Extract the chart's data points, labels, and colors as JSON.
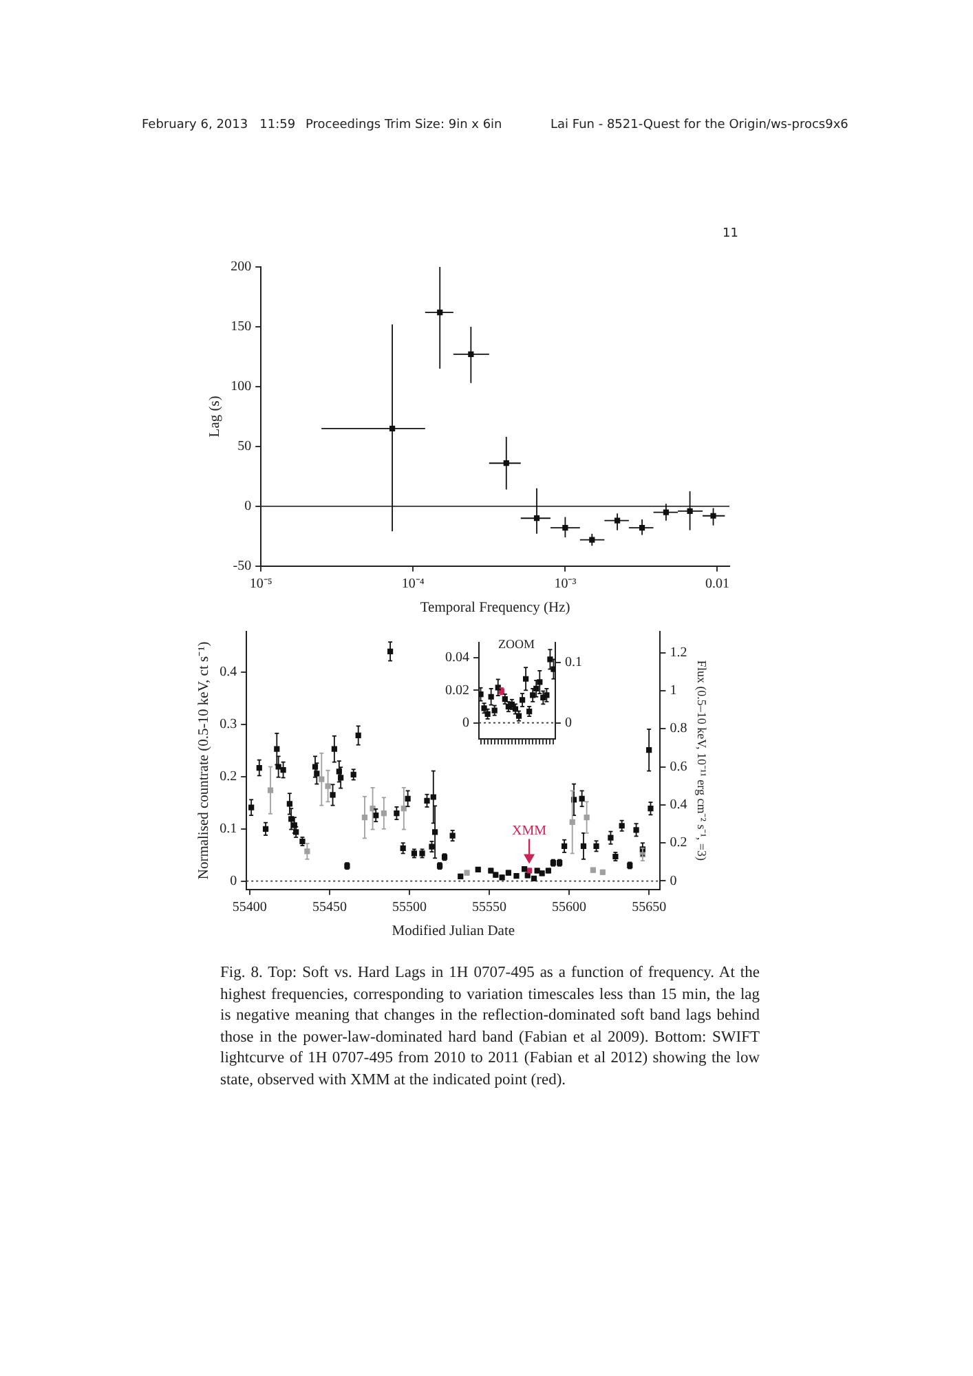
{
  "chart_data": [
    {
      "type": "scatter",
      "xlabel": "Temporal Frequency (Hz)",
      "ylabel": "Lag (s)",
      "log": "x",
      "grid": false,
      "legend": false,
      "marker": "square",
      "xlim": [
        1e-05,
        0.012
      ],
      "xticks": [
        {
          "value": 1e-05,
          "label": "10⁻⁵"
        },
        {
          "value": 0.0001,
          "label": "10⁻⁴"
        },
        {
          "value": 0.001,
          "label": "10⁻³"
        },
        0.01
      ],
      "ylim": [
        -50,
        200
      ],
      "yticks": [
        -50,
        0,
        50,
        100,
        150,
        200
      ],
      "ref_lines": [
        {
          "axis": "y",
          "value": 0,
          "line_style": "solid"
        }
      ],
      "annotations": [
        "February 6, 2013   11:59",
        "Proceedings Trim Size: 9in x 6in",
        "Lai Fun - 8521-Quest for the Origin/ws-procs9x6",
        "11"
      ],
      "series": [
        {
          "color": "#111111",
          "x": [
            7.3e-05,
            0.00015,
            0.00024,
            0.00041,
            0.00065,
            0.001,
            0.0015,
            0.0022,
            0.0032,
            0.0046,
            0.0066,
            0.0094
          ],
          "values": [
            65,
            162,
            127,
            36,
            -10,
            -18,
            -28,
            -12,
            -18,
            -5,
            -4,
            -8
          ],
          "errors": [
            [
              -21,
              152
            ],
            [
              115,
              200
            ],
            [
              103,
              150
            ],
            [
              14,
              58
            ],
            [
              -23,
              15
            ],
            [
              -26,
              -9
            ],
            [
              -33,
              -23
            ],
            [
              -20,
              -6
            ],
            [
              -24,
              -11
            ],
            [
              -12,
              2
            ],
            [
              -20,
              12.5
            ],
            [
              -16,
              -1.5
            ]
          ],
          "xerrors": [
            [
              2.5e-05,
              0.00012
            ],
            [
              0.00012,
              0.000184
            ],
            [
              0.000184,
              0.000316
            ],
            [
              0.000316,
              0.00051
            ],
            [
              0.00051,
              0.0008
            ],
            [
              0.0008,
              0.00125
            ],
            [
              0.00125,
              0.00181
            ],
            [
              0.00181,
              0.00262
            ],
            [
              0.00262,
              0.0038
            ],
            [
              0.0038,
              0.0055
            ],
            [
              0.0055,
              0.008
            ],
            [
              0.008,
              0.0112
            ]
          ]
        }
      ]
    },
    {
      "type": "scatter",
      "xlabel": "Modified Julian Date",
      "ylabel": "Normalised countrate (0.5-10 keV, ct s⁻¹)",
      "y2label": "Flux (0.5–10 keV, 10⁻¹¹ erg cm⁻² s⁻¹, =3)",
      "grid": false,
      "legend": false,
      "marker": "square",
      "xlim": [
        55398,
        55657
      ],
      "xticks": [
        55400,
        55450,
        55500,
        55550,
        55600,
        55650
      ],
      "ylim": [
        -0.016,
        0.478
      ],
      "yticks": [
        0,
        0.1,
        0.2,
        0.3,
        0.4
      ],
      "y2lim": [
        -0.045,
        1.311
      ],
      "y2ticks": [
        0,
        0.2,
        0.4,
        0.6,
        0.8,
        1.0,
        1.2
      ],
      "ref_lines": [
        {
          "axis": "y",
          "value": 0,
          "line_style": "dotted"
        }
      ],
      "annotations": [
        {
          "text": "XMM",
          "x": 55575,
          "y": 0.02
        },
        "Fig. 8.  Top: Soft vs. Hard Lags in 1H 0707-495 as a function of frequency. At the highest frequencies, corresponding to variation timescales less than 15 min, the lag is negative meaning that changes in the reflection-dominated soft band lags behind those in the power-law-dominated hard band (Fabian et al 2009). Bottom: SWIFT lightcurve of 1H 0707-495 from 2010 to 2011 (Fabian et al 2012) showing the low state, observed with XMM at the indicated point (red)."
      ],
      "series": [
        {
          "color": "#111111",
          "x": [
            55401,
            55406,
            55410,
            55417,
            55418,
            55421,
            55425,
            55426,
            55428,
            55429,
            55433,
            55441,
            55442,
            55452,
            55453,
            55456,
            55457,
            55461,
            55465,
            55468,
            55479,
            55488,
            55492,
            55496,
            55499,
            55503,
            55508,
            55511,
            55514,
            55515,
            55516,
            55519,
            55522,
            55527,
            55532,
            55543,
            55551,
            55554,
            55558,
            55562,
            55567,
            55572,
            55574,
            55578,
            55580,
            55583,
            55587,
            55590,
            55594,
            55597,
            55603,
            55608,
            55609,
            55617,
            55626,
            55629,
            55633,
            55638,
            55642,
            55646,
            55650,
            55651
          ],
          "values": [
            0.141,
            0.217,
            0.1,
            0.253,
            0.219,
            0.213,
            0.148,
            0.119,
            0.107,
            0.094,
            0.076,
            0.219,
            0.206,
            0.165,
            0.253,
            0.21,
            0.198,
            0.029,
            0.204,
            0.279,
            0.126,
            0.44,
            0.13,
            0.063,
            0.158,
            0.053,
            0.053,
            0.154,
            0.066,
            0.161,
            0.094,
            0.029,
            0.046,
            0.087,
            0.009,
            0.022,
            0.02,
            0.012,
            0.007,
            0.016,
            0.01,
            0.023,
            0.011,
            0.005,
            0.02,
            0.015,
            0.02,
            0.035,
            0.035,
            0.067,
            0.156,
            0.158,
            0.067,
            0.067,
            0.083,
            0.047,
            0.106,
            0.03,
            0.098,
            0.061,
            0.251,
            0.139
          ],
          "errors": [
            0.015,
            0.015,
            0.012,
            0.03,
            0.02,
            0.015,
            0.02,
            0.02,
            0.015,
            0.01,
            0.008,
            0.02,
            0.02,
            0.02,
            0.025,
            0.02,
            0.02,
            0.006,
            0.01,
            0.018,
            0.012,
            0.018,
            0.012,
            0.01,
            0.015,
            0.008,
            0.008,
            0.012,
            0.01,
            0.05,
            0.05,
            0.006,
            0.006,
            0.01,
            0.004,
            0.004,
            0.004,
            0.004,
            0.004,
            0.004,
            0.004,
            0.004,
            0.004,
            0.004,
            0.004,
            0.004,
            0.004,
            0.006,
            0.006,
            0.012,
            0.03,
            0.015,
            0.025,
            0.01,
            0.012,
            0.008,
            0.01,
            0.006,
            0.012,
            0.012,
            0.04,
            0.012
          ]
        },
        {
          "color": "#a0a0a0",
          "x": [
            55413,
            55436,
            55445,
            55449,
            55472,
            55477,
            55484,
            55496.5,
            55536,
            55602,
            55611,
            55615,
            55621,
            55646
          ],
          "values": [
            0.174,
            0.057,
            0.195,
            0.182,
            0.122,
            0.139,
            0.13,
            0.139,
            0.016,
            0.113,
            0.122,
            0.021,
            0.017,
            0.051
          ],
          "errors": [
            0.045,
            0.015,
            0.05,
            0.03,
            0.04,
            0.04,
            0.03,
            0.04,
            0.004,
            0.06,
            0.03,
            0.004,
            0.004,
            0.012
          ]
        },
        {
          "color": "#cc2255",
          "x": [
            55575
          ],
          "values": [
            0.02
          ],
          "errors": [
            0.004
          ]
        }
      ]
    },
    {
      "type": "scatter",
      "grid": false,
      "legend": false,
      "marker": "square",
      "tick_labels": "y",
      "categories": [
        null,
        null,
        null,
        null,
        null,
        null,
        null,
        null,
        null,
        null,
        null,
        null,
        null,
        null,
        null,
        null,
        null,
        null,
        null,
        null,
        null,
        null
      ],
      "ylim": [
        -0.0099,
        0.0493
      ],
      "yticks": [
        0,
        0.02,
        0.04
      ],
      "y2lim": [
        -0.0265,
        0.1326
      ],
      "y2ticks": [
        0,
        0.1
      ],
      "ref_lines": [
        {
          "axis": "y",
          "value": 0,
          "line_style": "dotted"
        }
      ],
      "annotations": [
        "ZOOM"
      ],
      "series": [
        {
          "color": "#111111",
          "values": [
            0.0175,
            0.009,
            0.0054,
            0.016,
            0.0076,
            0.0217,
            null,
            0.0146,
            0.0099,
            0.0113,
            0.0085,
            0.0042,
            0.014,
            0.027,
            0.007,
            0.017,
            0.021,
            0.025,
            0.0155,
            0.017,
            0.039,
            0.033
          ],
          "errors": [
            0.004,
            0.003,
            0.003,
            0.005,
            0.003,
            0.005,
            null,
            0.003,
            0.003,
            0.003,
            0.003,
            0.003,
            0.004,
            0.007,
            0.003,
            0.004,
            0.005,
            0.007,
            0.004,
            0.004,
            0.006,
            0.006
          ]
        },
        {
          "color": "#cc2255",
          "values": [
            null,
            null,
            null,
            null,
            null,
            null,
            0.0194,
            null,
            null,
            null,
            null,
            null,
            null,
            null,
            null,
            null,
            null,
            null,
            null,
            null,
            null,
            null
          ],
          "errors": [
            null,
            null,
            null,
            null,
            null,
            null,
            0.002,
            null,
            null,
            null,
            null,
            null,
            null,
            null,
            null,
            null,
            null,
            null,
            null,
            null,
            null,
            null
          ]
        }
      ]
    }
  ]
}
